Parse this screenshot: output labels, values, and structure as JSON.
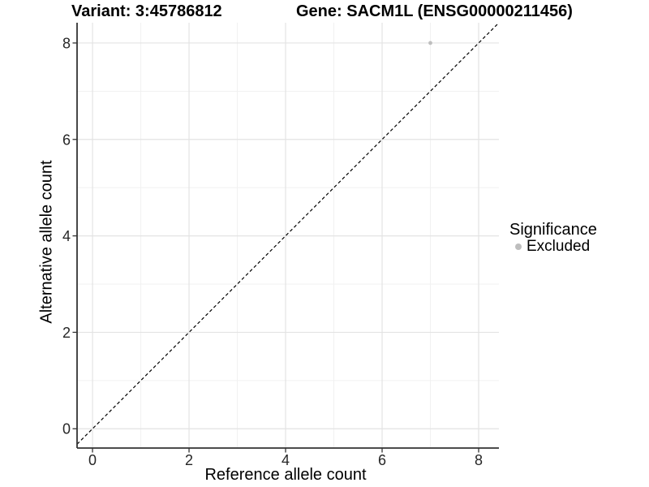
{
  "titles": {
    "variant": "Variant: 3:45786812",
    "gene": "Gene: SACM1L (ENSG00000211456)"
  },
  "legend": {
    "title": "Significance",
    "items": [
      {
        "label": "Excluded",
        "color": "#bebebe",
        "shape": "circle"
      }
    ]
  },
  "colors": {
    "point": "#bebebe",
    "grid_major": "#e3e3e3",
    "grid_minor": "#f1f1f1",
    "axis_line": "#333333",
    "tick_mark": "#333333",
    "tick_text": "#262626",
    "identity_line": "#000000"
  },
  "chart_data": {
    "type": "scatter",
    "title": "Variant: 3:45786812    Gene: SACM1L (ENSG00000211456)",
    "xlabel": "Reference allele count",
    "ylabel": "Alternative allele count",
    "xlim": [
      -0.32,
      8.42
    ],
    "ylim": [
      -0.4,
      8.42
    ],
    "x_ticks": [
      0,
      2,
      4,
      6,
      8
    ],
    "y_ticks": [
      0,
      2,
      4,
      6,
      8
    ],
    "x_minor_ticks": [
      1,
      3,
      5,
      7
    ],
    "y_minor_ticks": [
      1,
      3,
      5,
      7
    ],
    "grid": "major+minor",
    "legend_position": "right",
    "legend_title": "Significance",
    "series": [
      {
        "name": "Excluded",
        "color": "#bebebe",
        "marker": "circle",
        "points": [
          {
            "x": 7,
            "y": 8
          }
        ]
      }
    ],
    "reference_line": {
      "kind": "identity",
      "slope": 1,
      "intercept": 0,
      "style": "dashed",
      "color": "#000000"
    }
  }
}
